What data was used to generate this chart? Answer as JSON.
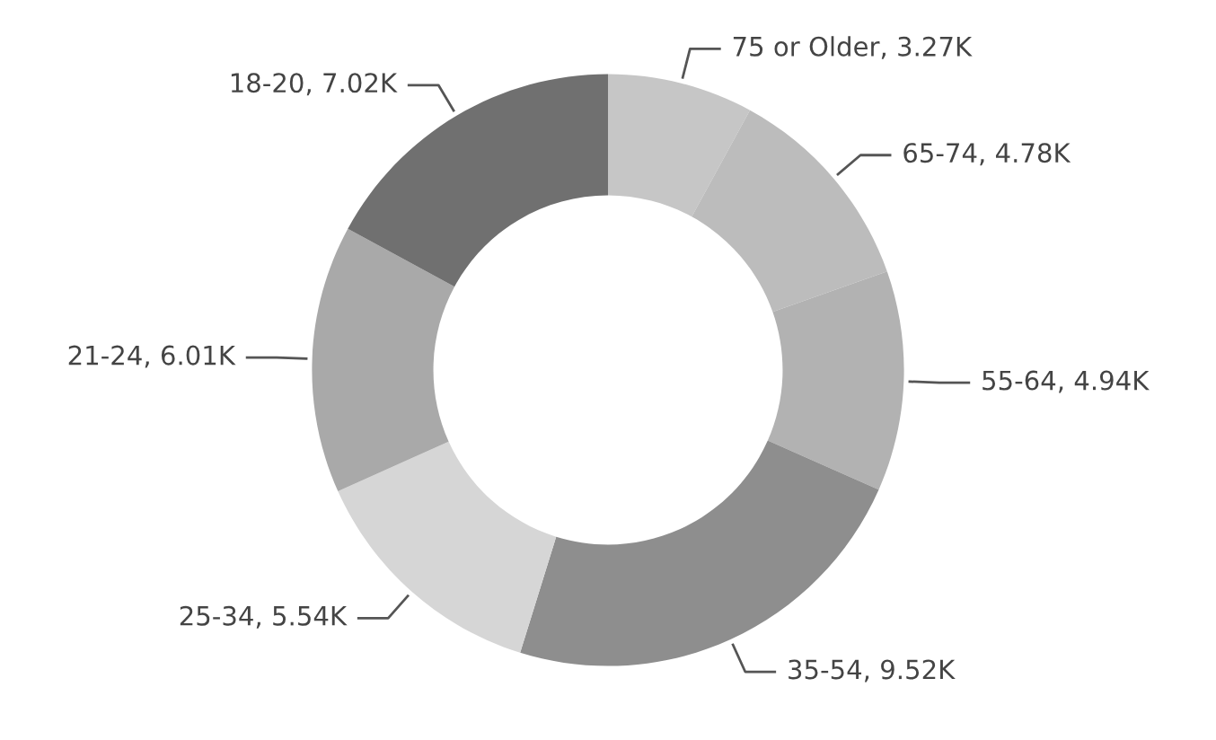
{
  "chart_data": {
    "type": "donut",
    "categories": [
      "75 or Older",
      "65-74",
      "55-64",
      "35-54",
      "25-34",
      "21-24",
      "18-20"
    ],
    "values": [
      3270,
      4780,
      4940,
      9520,
      5540,
      6010,
      7020
    ],
    "value_labels": [
      "3.27K",
      "4.78K",
      "4.94K",
      "9.52K",
      "5.54K",
      "6.01K",
      "7.02K"
    ],
    "colors": [
      "#c6c6c6",
      "#bcbcbc",
      "#b2b2b2",
      "#8e8e8e",
      "#d6d6d6",
      "#a9a9a9",
      "#707070"
    ],
    "legend": false
  }
}
